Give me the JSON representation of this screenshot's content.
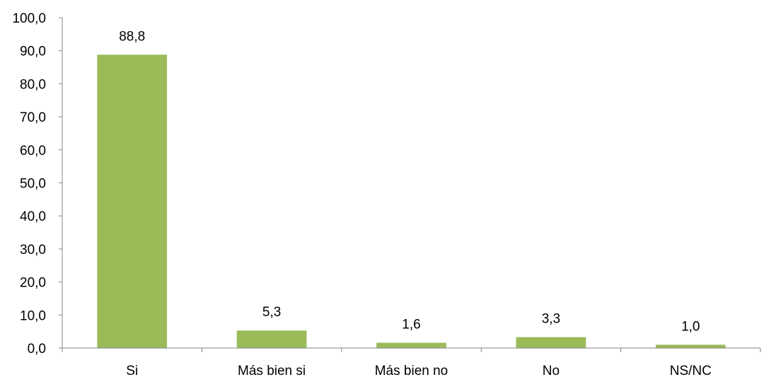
{
  "chart_data": {
    "type": "bar",
    "categories": [
      "Si",
      "Más bien si",
      "Más bien no",
      "No",
      "NS/NC"
    ],
    "values": [
      88.8,
      5.3,
      1.6,
      3.3,
      1.0
    ],
    "value_labels": [
      "88,8",
      "5,3",
      "1,6",
      "3,3",
      "1,0"
    ],
    "yticks": [
      "0,0",
      "10,0",
      "20,0",
      "30,0",
      "40,0",
      "50,0",
      "60,0",
      "70,0",
      "80,0",
      "90,0",
      "100,0"
    ],
    "ylim": [
      0,
      100
    ],
    "title": "",
    "xlabel": "",
    "ylabel": "",
    "grid": false,
    "legend": "none",
    "bar_color": "#9BBB59",
    "axis_color": "#868686"
  }
}
